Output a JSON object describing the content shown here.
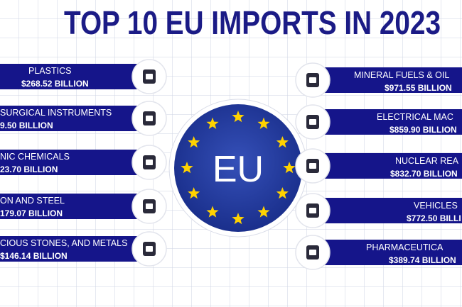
{
  "header": {
    "title": "TOP 10 EU IMPORTS IN 2023"
  },
  "center": {
    "label": "EU"
  },
  "left_items": [
    {
      "name": "PLASTICS",
      "value": "$268.52 BILLION"
    },
    {
      "name": "SURGICAL INSTRUMENTS",
      "value": "9.50 BILLION"
    },
    {
      "name": "NIC CHEMICALS",
      "value": "23.70 BILLION"
    },
    {
      "name": "ON AND STEEL",
      "value": "179.07 BILLION"
    },
    {
      "name": "CIOUS STONES, AND METALS",
      "value": "$146.14 BILLION"
    }
  ],
  "right_items": [
    {
      "name": "MINERAL FUELS & OIL",
      "value": "$971.55 BILLION"
    },
    {
      "name": "ELECTRICAL MAC",
      "value": "$859.90 BILLION"
    },
    {
      "name": "NUCLEAR REA",
      "value": "$832.70 BILLION"
    },
    {
      "name": "VEHICLES",
      "value": "$772.50 BILLI"
    },
    {
      "name": "PHARMACEUTICA",
      "value": "$389.74 BILLION"
    }
  ]
}
